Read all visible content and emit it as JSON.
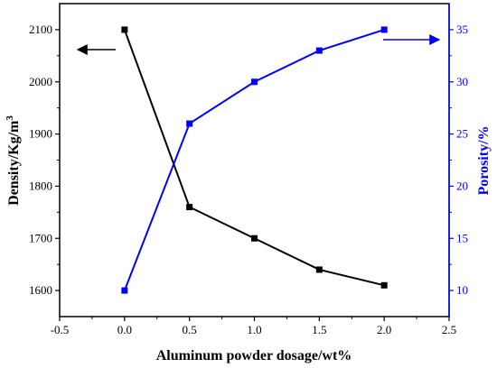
{
  "chart_data": {
    "type": "line",
    "title": "",
    "xlabel": "Aluminum powder dosage/wt%",
    "ylabel_left": {
      "prefix": "Density/Kg/m",
      "superscript": "3"
    },
    "ylabel_right": "Porosity/%",
    "xlim": [
      -0.5,
      2.5
    ],
    "ylim_left": [
      1550,
      2150
    ],
    "ylim_right": [
      7.5,
      37.5
    ],
    "x_ticks": [
      "-0.5",
      "0.0",
      "0.5",
      "1.0",
      "1.5",
      "2.0",
      "2.5"
    ],
    "y_left_ticks": [
      "1600",
      "1700",
      "1800",
      "1900",
      "2000",
      "2100"
    ],
    "y_right_ticks": [
      "10",
      "15",
      "20",
      "25",
      "30",
      "35"
    ],
    "grid": false,
    "colors": {
      "density": "#000000",
      "porosity": "#0000ff"
    },
    "series": [
      {
        "axis": "left",
        "color": "#000000",
        "x": [
          0.0,
          0.5,
          1.0,
          1.5,
          2.0
        ],
        "values": [
          2100,
          1760,
          1700,
          1640,
          1610
        ],
        "marker": "square"
      },
      {
        "axis": "right",
        "color": "#0000ff",
        "x": [
          0.0,
          0.5,
          1.0,
          1.5,
          2.0
        ],
        "values": [
          10,
          26,
          30,
          33,
          35
        ],
        "marker": "square"
      }
    ],
    "annotations": [
      {
        "type": "arrow",
        "direction": "left",
        "series_axis": "left",
        "color": "#000000"
      },
      {
        "type": "arrow",
        "direction": "right",
        "series_axis": "right",
        "color": "#0000ff"
      }
    ]
  }
}
